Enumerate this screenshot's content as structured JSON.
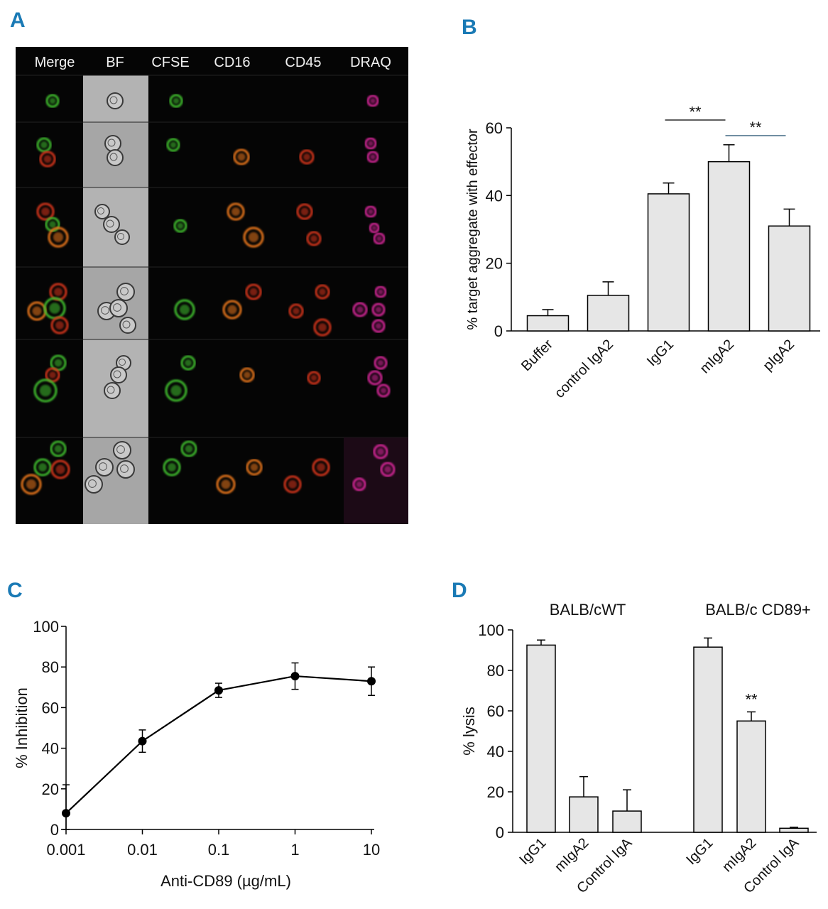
{
  "panel_letters": {
    "a": "A",
    "b": "B",
    "c": "C",
    "d": "D"
  },
  "micrograph": {
    "columns": [
      "Merge",
      "BF",
      "CFSE",
      "CD16",
      "CD45",
      "DRAQ"
    ],
    "colors": {
      "cfse": "#3fbf2f",
      "cd16": "#e8761a",
      "cd45": "#d8351c",
      "draq": "#d8259a",
      "bf": "#9a9a9a"
    }
  },
  "chart_data": [
    {
      "panel": "B",
      "type": "bar",
      "categories": [
        "Buffer",
        "control IgA2",
        "IgG1",
        "mIgA2",
        "pIgA2"
      ],
      "values": [
        4.5,
        10.5,
        40.5,
        50,
        31
      ],
      "errors": [
        1.8,
        4,
        3.2,
        5,
        5
      ],
      "ylabel": "% target aggregate with effector",
      "ylim": [
        0,
        60
      ],
      "yticks": [
        0,
        20,
        40,
        60
      ],
      "grid": false,
      "bar_color": "#e6e6e6",
      "annotations": [
        {
          "from": "IgG1",
          "to": "mIgA2",
          "text": "**"
        },
        {
          "from": "mIgA2",
          "to": "pIgA2",
          "text": "**"
        }
      ]
    },
    {
      "panel": "C",
      "type": "line",
      "x": [
        0.001,
        0.01,
        0.1,
        1,
        10
      ],
      "y": [
        8,
        43.5,
        68.5,
        75.5,
        73
      ],
      "errors": [
        14,
        5.5,
        3.5,
        6.5,
        7
      ],
      "xscale": "log",
      "xticklabels": [
        "0.001",
        "0.01",
        "0.1",
        "1",
        "10"
      ],
      "xlabel": "Anti-CD89 (µg/mL)",
      "ylabel": "% Inhibition",
      "ylim": [
        0,
        100
      ],
      "yticks": [
        0,
        20,
        40,
        60,
        80,
        100
      ],
      "grid": false
    },
    {
      "panel": "D",
      "type": "bar",
      "groups": [
        "BALB/cWT",
        "BALB/c CD89+"
      ],
      "categories": [
        "IgG1",
        "mIgA2",
        "Control IgA",
        "IgG1",
        "mIgA2",
        "Control IgA"
      ],
      "values": [
        92.5,
        17.5,
        10.5,
        91.5,
        55,
        2
      ],
      "errors": [
        2.5,
        10,
        10.5,
        4.5,
        4.5,
        0.5
      ],
      "ylabel": "% lysis",
      "ylim": [
        0,
        100
      ],
      "yticks": [
        0,
        20,
        40,
        60,
        80,
        100
      ],
      "grid": false,
      "bar_color": "#e6e6e6",
      "annotations": [
        {
          "at": 4,
          "text": "**"
        }
      ]
    }
  ]
}
